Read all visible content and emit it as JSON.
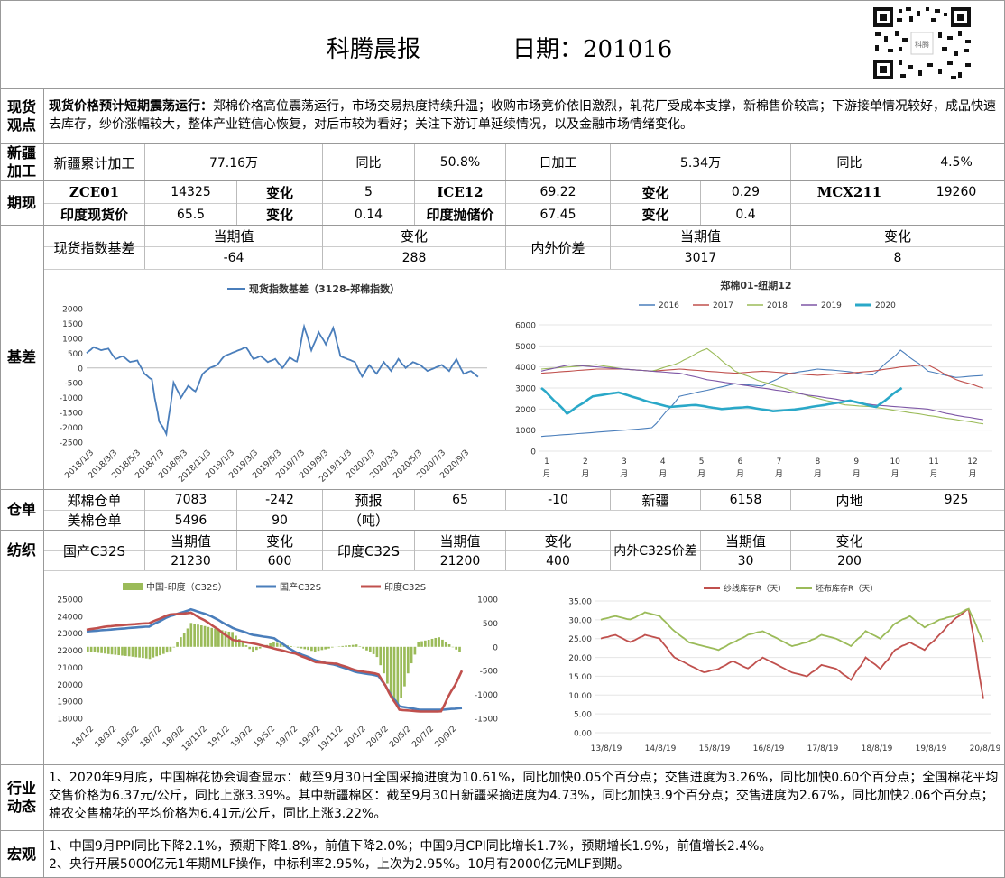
{
  "header": {
    "title": "科腾晨报",
    "date": "日期：201016"
  },
  "rows": {
    "spot": {
      "label_a": "现货",
      "label_b": "观点",
      "headline": "现货价格预计短期震荡运行：",
      "text": "郑棉价格高位震荡运行，市场交易热度持续升温；收购市场竞价依旧激烈，轧花厂受成本支撑，新棉售价较高；下游接单情况较好，成品快速去库存，纱价涨幅较大，整体产业链信心恢复，对后市较为看好；关注下游订单延续情况，以及金融市场情绪变化。"
    },
    "xinjiang": {
      "label_a": "新疆",
      "label_b": "加工",
      "c1": "新疆累计加工",
      "c2": "77.16万",
      "c3": "同比",
      "c4": "50.8%",
      "c5": "日加工",
      "c6": "5.34万",
      "c7": "同比",
      "c8": "4.5%"
    },
    "futures": {
      "label": "期现",
      "r1": [
        "ZCE01",
        "14325",
        "变化",
        "5",
        "ICE12",
        "69.22",
        "变化",
        "0.29",
        "MCX211",
        "19260"
      ],
      "r2": [
        "印度现货价",
        "65.5",
        "变化",
        "0.14",
        "印度抛储价",
        "67.45",
        "变化",
        "0.4"
      ]
    },
    "basis": {
      "label": "基差",
      "h1": "现货指数基差",
      "h2": "当期值",
      "h3": "变化",
      "h4": "内外价差",
      "h5": "当期值",
      "h6": "变化",
      "v2": "-64",
      "v3": "288",
      "v5": "3017",
      "v6": "8"
    },
    "warehouse": {
      "label": "仓单",
      "r1": [
        "郑棉仓单",
        "7083",
        "-242",
        "预报",
        "65",
        "-10",
        "新疆",
        "6158",
        "内地",
        "925"
      ],
      "r2": [
        "美棉仓单",
        "5496",
        "90",
        "（吨）"
      ]
    },
    "textile": {
      "label": "纺织",
      "c1": "国产C32S",
      "h1": "当期值",
      "h2": "变化",
      "v1": "21230",
      "v2": "600",
      "c2": "印度C32S",
      "h3": "当期值",
      "h4": "变化",
      "v3": "21200",
      "v4": "400",
      "c3": "内外C32S价差",
      "h5": "当期值",
      "h6": "变化",
      "v5": "30",
      "v6": "200"
    },
    "industry": {
      "label_a": "行业",
      "label_b": "动态",
      "text": "1、2020年9月底，中国棉花协会调查显示：截至9月30日全国采摘进度为10.61%，同比加快0.05个百分点；交售进度为3.26%，同比加快0.60个百分点；全国棉花平均交售价格为6.37元/公斤，同比上涨3.39%。其中新疆棉区：截至9月30日新疆采摘进度为4.73%，同比加快3.9个百分点；交售进度为2.67%，同比加快2.06个百分点；棉农交售棉花的平均价格为6.41元/公斤，同比上涨3.22%。"
    },
    "macro": {
      "label": "宏观",
      "l1": "1、中国9月PPI同比下降2.1%，预期下降1.8%，前值下降2.0%；中国9月CPI同比增长1.7%，预期增长1.9%，前值增长2.4%。",
      "l2": "2、央行开展5000亿元1年期MLF操作，中标利率2.95%，上次为2.95%。10月有2000亿元MLF到期。"
    }
  },
  "chart_data": [
    {
      "type": "line",
      "title": "",
      "series": [
        {
          "name": "现货指数基差（3128-郑棉指数）"
        }
      ],
      "ylim": [
        -2500,
        2000
      ],
      "yticks": [
        "2000",
        "1500",
        "1000",
        "500",
        "0",
        "-500",
        "-1000",
        "-1500",
        "-2000",
        "-2500"
      ],
      "xticks": [
        "2018/1/3",
        "2018/3/3",
        "2018/5/3",
        "2018/7/3",
        "2018/9/3",
        "2018/11/3",
        "2019/1/3",
        "2019/3/3",
        "2019/5/3",
        "2019/7/3",
        "2019/9/3",
        "2019/11/3",
        "2020/1/3",
        "2020/3/3",
        "2020/5/3",
        "2020/7/3",
        "2020/9/3"
      ],
      "values": [
        500,
        700,
        600,
        650,
        300,
        400,
        200,
        250,
        -200,
        -400,
        -1800,
        -2200,
        -500,
        -1000,
        -600,
        -800,
        -200,
        0,
        100,
        400,
        500,
        600,
        700,
        300,
        400,
        200,
        300,
        0,
        350,
        200,
        1400,
        600,
        1200,
        800,
        1350,
        400,
        300,
        200,
        -300,
        100,
        -200,
        200,
        -100,
        300,
        0,
        200,
        100,
        -100,
        0,
        100,
        -100,
        300,
        -200,
        -100,
        -300
      ]
    },
    {
      "type": "line",
      "title": "郑棉01-纽期12",
      "ylim": [
        0,
        6000
      ],
      "yticks": [
        "6000",
        "5000",
        "4000",
        "3000",
        "2000",
        "1000",
        "0"
      ],
      "xticks": [
        "1月",
        "2月",
        "3月",
        "4月",
        "5月",
        "6月",
        "7月",
        "8月",
        "9月",
        "10月",
        "11月",
        "12月"
      ],
      "colors": [
        "#4a7ebb",
        "#c0504d",
        "#9bbb59",
        "#7e57a6",
        "#2aa8c8"
      ],
      "series": [
        {
          "name": "2016",
          "values": [
            700,
            800,
            900,
            1000,
            1100,
            2600,
            2900,
            3200,
            3100,
            3700,
            3900,
            3800,
            3600,
            4800,
            3800,
            3500,
            3600
          ]
        },
        {
          "name": "2017",
          "values": [
            3700,
            3800,
            3900,
            3900,
            3800,
            3900,
            3800,
            3700,
            3800,
            3700,
            3600,
            3700,
            3800,
            4000,
            4100,
            3400,
            3000
          ]
        },
        {
          "name": "2018",
          "values": [
            3900,
            4000,
            4100,
            3900,
            3800,
            4200,
            4900,
            3800,
            3300,
            2900,
            2500,
            2200,
            2100,
            1900,
            1700,
            1500,
            1300
          ]
        },
        {
          "name": "2019",
          "values": [
            3800,
            4100,
            4000,
            3900,
            3800,
            3700,
            3400,
            3200,
            3000,
            2800,
            2600,
            2400,
            2200,
            2100,
            2000,
            1700,
            1500
          ]
        },
        {
          "name": "2020",
          "values": [
            3000,
            1800,
            2600,
            2800,
            2400,
            2100,
            2200,
            2000,
            2100,
            1900,
            2000,
            2200,
            2400,
            2100,
            3000
          ]
        }
      ]
    },
    {
      "type": "line",
      "title": "",
      "ylim": [
        18000,
        25000
      ],
      "y2lim": [
        -1500,
        1000
      ],
      "yticks": [
        "25000",
        "24000",
        "23000",
        "22000",
        "21000",
        "20000",
        "19000",
        "18000"
      ],
      "y2ticks": [
        "1000",
        "500",
        "0",
        "-500",
        "-1000",
        "-1500"
      ],
      "xticks": [
        "18/1/2",
        "18/3/2",
        "18/5/2",
        "18/7/2",
        "18/9/2",
        "18/11/2",
        "19/1/2",
        "19/3/2",
        "19/5/2",
        "19/7/2",
        "19/9/2",
        "19/11/2",
        "20/1/2",
        "20/3/2",
        "20/5/2",
        "20/7/2",
        "20/9/2"
      ],
      "colors": [
        "#9bbb59",
        "#4a7ebb",
        "#c0504d"
      ],
      "series": [
        {
          "name": "中国-印度（C32S）",
          "values": [
            -100,
            -150,
            -200,
            -250,
            -100,
            500,
            400,
            300,
            -100,
            100,
            0,
            -100,
            0,
            50,
            -200,
            -1300,
            100,
            200,
            -100
          ]
        },
        {
          "name": "国产C32S",
          "values": [
            23100,
            23200,
            23300,
            23400,
            24000,
            24400,
            24000,
            23300,
            22900,
            22700,
            21900,
            21400,
            21100,
            20700,
            20500,
            18700,
            18500,
            18500,
            18600
          ]
        },
        {
          "name": "印度C32S",
          "values": [
            23200,
            23400,
            23500,
            23600,
            24100,
            24200,
            23500,
            22600,
            22400,
            22100,
            21800,
            21300,
            21200,
            20800,
            20600,
            18500,
            18400,
            18400,
            20800
          ]
        }
      ]
    },
    {
      "type": "line",
      "title": "",
      "ylim": [
        0,
        35
      ],
      "yticks": [
        "35.00",
        "30.00",
        "25.00",
        "20.00",
        "15.00",
        "10.00",
        "5.00",
        "0.00"
      ],
      "xticks": [
        "13/8/19",
        "14/8/19",
        "15/8/19",
        "16/8/19",
        "17/8/19",
        "18/8/19",
        "19/8/19",
        "20/8/19"
      ],
      "colors": [
        "#c0504d",
        "#9bbb59"
      ],
      "series": [
        {
          "name": "纱线库存R（天）",
          "values": [
            25,
            26,
            24,
            26,
            25,
            20,
            18,
            16,
            17,
            19,
            17,
            20,
            18,
            16,
            15,
            18,
            17,
            14,
            20,
            17,
            22,
            24,
            22,
            26,
            30,
            33,
            9
          ]
        },
        {
          "name": "坯布库存R（天）",
          "values": [
            30,
            31,
            30,
            32,
            31,
            27,
            24,
            23,
            22,
            24,
            26,
            27,
            25,
            23,
            24,
            26,
            25,
            23,
            27,
            25,
            29,
            31,
            28,
            30,
            31,
            33,
            24
          ]
        }
      ]
    }
  ]
}
